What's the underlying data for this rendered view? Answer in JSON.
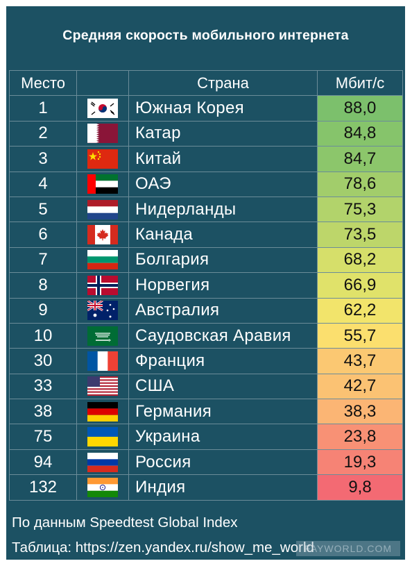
{
  "title": "Средняя скорость мобильного интернета",
  "headers": {
    "rank": "Место",
    "country": "Страна",
    "speed": "Мбит/с"
  },
  "rows": [
    {
      "rank": "1",
      "country": "Южная Корея",
      "speed": "88,0",
      "flag": "south-korea",
      "color": "#7cc06c"
    },
    {
      "rank": "2",
      "country": "Катар",
      "speed": "84,8",
      "flag": "qatar",
      "color": "#86c46b"
    },
    {
      "rank": "3",
      "country": "Китай",
      "speed": "84,7",
      "flag": "china",
      "color": "#8cc66b"
    },
    {
      "rank": "4",
      "country": "ОАЭ",
      "speed": "78,6",
      "flag": "uae",
      "color": "#a2cd6b"
    },
    {
      "rank": "5",
      "country": "Нидерланды",
      "speed": "75,3",
      "flag": "netherlands",
      "color": "#b2d36b"
    },
    {
      "rank": "6",
      "country": "Канада",
      "speed": "73,5",
      "flag": "canada",
      "color": "#bdd66a"
    },
    {
      "rank": "7",
      "country": "Болгария",
      "speed": "68,2",
      "flag": "bulgaria",
      "color": "#d6df6a"
    },
    {
      "rank": "8",
      "country": "Норвегия",
      "speed": "66,9",
      "flag": "norway",
      "color": "#e0e26a"
    },
    {
      "rank": "9",
      "country": "Австралия",
      "speed": "62,2",
      "flag": "australia",
      "color": "#f2e46b"
    },
    {
      "rank": "10",
      "country": "Саудовская Аравия",
      "speed": "55,7",
      "flag": "saudi-arabia",
      "color": "#fbdf6e"
    },
    {
      "rank": "30",
      "country": "Франция",
      "speed": "43,7",
      "flag": "france",
      "color": "#fbc872"
    },
    {
      "rank": "33",
      "country": "США",
      "speed": "42,7",
      "flag": "usa",
      "color": "#fbc273"
    },
    {
      "rank": "38",
      "country": "Германия",
      "speed": "38,3",
      "flag": "germany",
      "color": "#fbb574"
    },
    {
      "rank": "75",
      "country": "Украина",
      "speed": "23,8",
      "flag": "ukraine",
      "color": "#f89175"
    },
    {
      "rank": "94",
      "country": "Россия",
      "speed": "19,3",
      "flag": "russia",
      "color": "#f68375"
    },
    {
      "rank": "132",
      "country": "Индия",
      "speed": "9,8",
      "flag": "india",
      "color": "#f36a73"
    }
  ],
  "footer": {
    "source": "По данным Speedtest Global Index",
    "link": "Таблица: https://zen.yandex.ru/show_me_world"
  },
  "watermark": "FAYWORLD.COM"
}
